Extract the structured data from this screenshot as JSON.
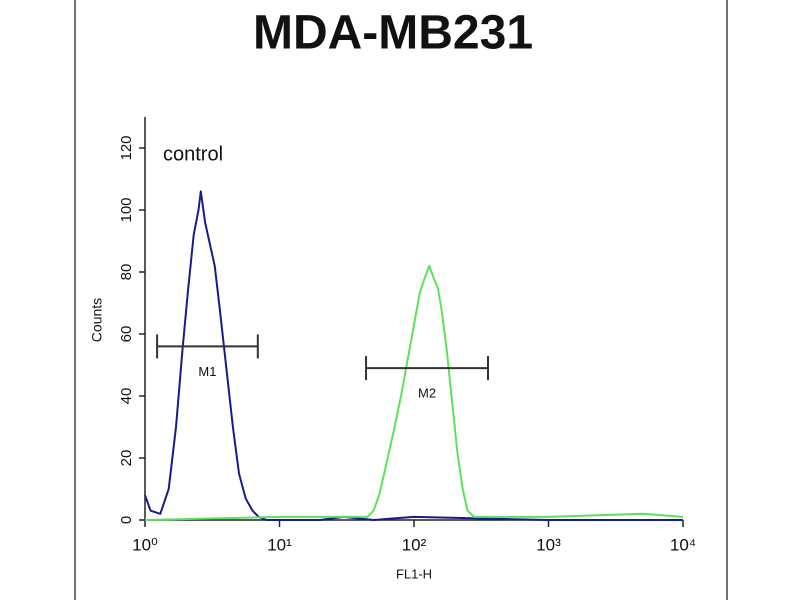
{
  "chart_data": {
    "type": "line",
    "title": "MDA-MB231",
    "annotation": "control",
    "x_label": "FL1-H",
    "y_label": "Counts",
    "xscale": "log",
    "xlim": [
      1,
      10000
    ],
    "xticks": [
      {
        "value": 1,
        "label": "10⁰"
      },
      {
        "value": 10,
        "label": "10¹"
      },
      {
        "value": 100,
        "label": "10²"
      },
      {
        "value": 1000,
        "label": "10³"
      },
      {
        "value": 10000,
        "label": "10⁴"
      }
    ],
    "ylim": [
      0,
      130
    ],
    "yticks": [
      0,
      20,
      40,
      60,
      80,
      100,
      120
    ],
    "series": [
      {
        "name": "control",
        "color": "#1a1a8c",
        "x": [
          1.0,
          1.1,
          1.3,
          1.5,
          1.7,
          1.9,
          2.1,
          2.3,
          2.5,
          2.6,
          2.8,
          3.0,
          3.3,
          3.6,
          4.0,
          4.5,
          5.0,
          5.6,
          6.3,
          7.0,
          8,
          20,
          30,
          50,
          100,
          1000,
          10000
        ],
        "values": [
          8,
          3,
          2,
          10,
          30,
          55,
          75,
          92,
          100,
          106,
          96,
          90,
          82,
          68,
          50,
          30,
          15,
          7,
          3,
          1,
          0,
          0,
          1,
          0,
          1,
          0,
          0
        ]
      },
      {
        "color": "#5ee05e",
        "x": [
          1,
          10,
          30,
          45,
          50,
          55,
          60,
          70,
          80,
          90,
          100,
          110,
          120,
          130,
          140,
          150,
          160,
          175,
          190,
          210,
          230,
          250,
          280,
          400,
          1000,
          5000,
          10000
        ],
        "values": [
          0,
          1,
          1,
          1,
          3,
          8,
          15,
          28,
          40,
          52,
          63,
          73,
          78,
          82,
          78,
          75,
          68,
          55,
          40,
          22,
          10,
          3,
          1,
          1,
          1,
          2,
          1
        ]
      }
    ],
    "markers": [
      {
        "label": "M1",
        "x": [
          1.23,
          6.9
        ],
        "y": 56
      },
      {
        "label": "M2",
        "x": [
          44,
          355
        ],
        "y": 49
      }
    ]
  }
}
